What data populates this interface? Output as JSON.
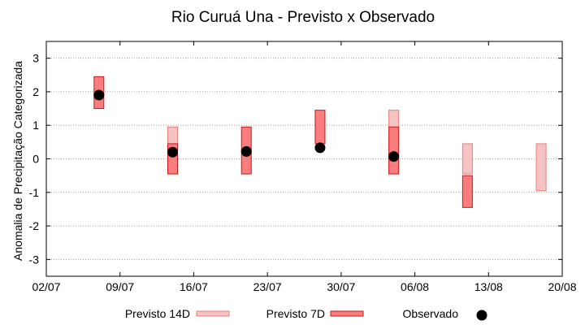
{
  "chart_data": {
    "type": "floating-bar",
    "title": "Rio Curuá Una - Previsto x Observado",
    "xlabel": "",
    "ylabel": "Anomalia de Precipitação Categorizada",
    "ylim": [
      -3.5,
      3.5
    ],
    "yticks": [
      -3,
      -2,
      -1,
      0,
      1,
      2,
      3
    ],
    "xlim": [
      "2024-07-02",
      "2024-08-20"
    ],
    "xticks": [
      "2024-07-02",
      "2024-07-09",
      "2024-07-16",
      "2024-07-23",
      "2024-07-30",
      "2024-08-06",
      "2024-08-13",
      "2024-08-20"
    ],
    "xtick_labels": [
      "02/07",
      "09/07",
      "16/07",
      "23/07",
      "30/07",
      "06/08",
      "13/08",
      "20/08"
    ],
    "grid": true,
    "legend_position": "bottom",
    "series": [
      {
        "name": "Previsto 14D",
        "color": "#f7c2c2",
        "stroke": "#e37f7f",
        "points": [
          {
            "x": "2024-07-14",
            "low": -0.45,
            "high": 0.95
          },
          {
            "x": "2024-08-04",
            "low": -0.45,
            "high": 1.45
          },
          {
            "x": "2024-08-11",
            "low": -0.45,
            "high": 0.45
          },
          {
            "x": "2024-08-18",
            "low": -0.95,
            "high": 0.45
          }
        ]
      },
      {
        "name": "Previsto 7D",
        "color": "#f97d7d",
        "stroke": "#c21a1a",
        "points": [
          {
            "x": "2024-07-07",
            "low": 1.5,
            "high": 2.45
          },
          {
            "x": "2024-07-14",
            "low": -0.45,
            "high": 0.45
          },
          {
            "x": "2024-07-21",
            "low": -0.45,
            "high": 0.95
          },
          {
            "x": "2024-07-28",
            "low": 0.45,
            "high": 1.45
          },
          {
            "x": "2024-08-04",
            "low": -0.45,
            "high": 0.95
          },
          {
            "x": "2024-08-11",
            "low": -1.45,
            "high": -0.5
          }
        ]
      },
      {
        "name": "Observado",
        "color": "#000000",
        "points": [
          {
            "x": "2024-07-07",
            "y": 1.9
          },
          {
            "x": "2024-07-14",
            "y": 0.2
          },
          {
            "x": "2024-07-21",
            "y": 0.22
          },
          {
            "x": "2024-07-28",
            "y": 0.33
          },
          {
            "x": "2024-08-04",
            "y": 0.07
          }
        ]
      }
    ]
  }
}
